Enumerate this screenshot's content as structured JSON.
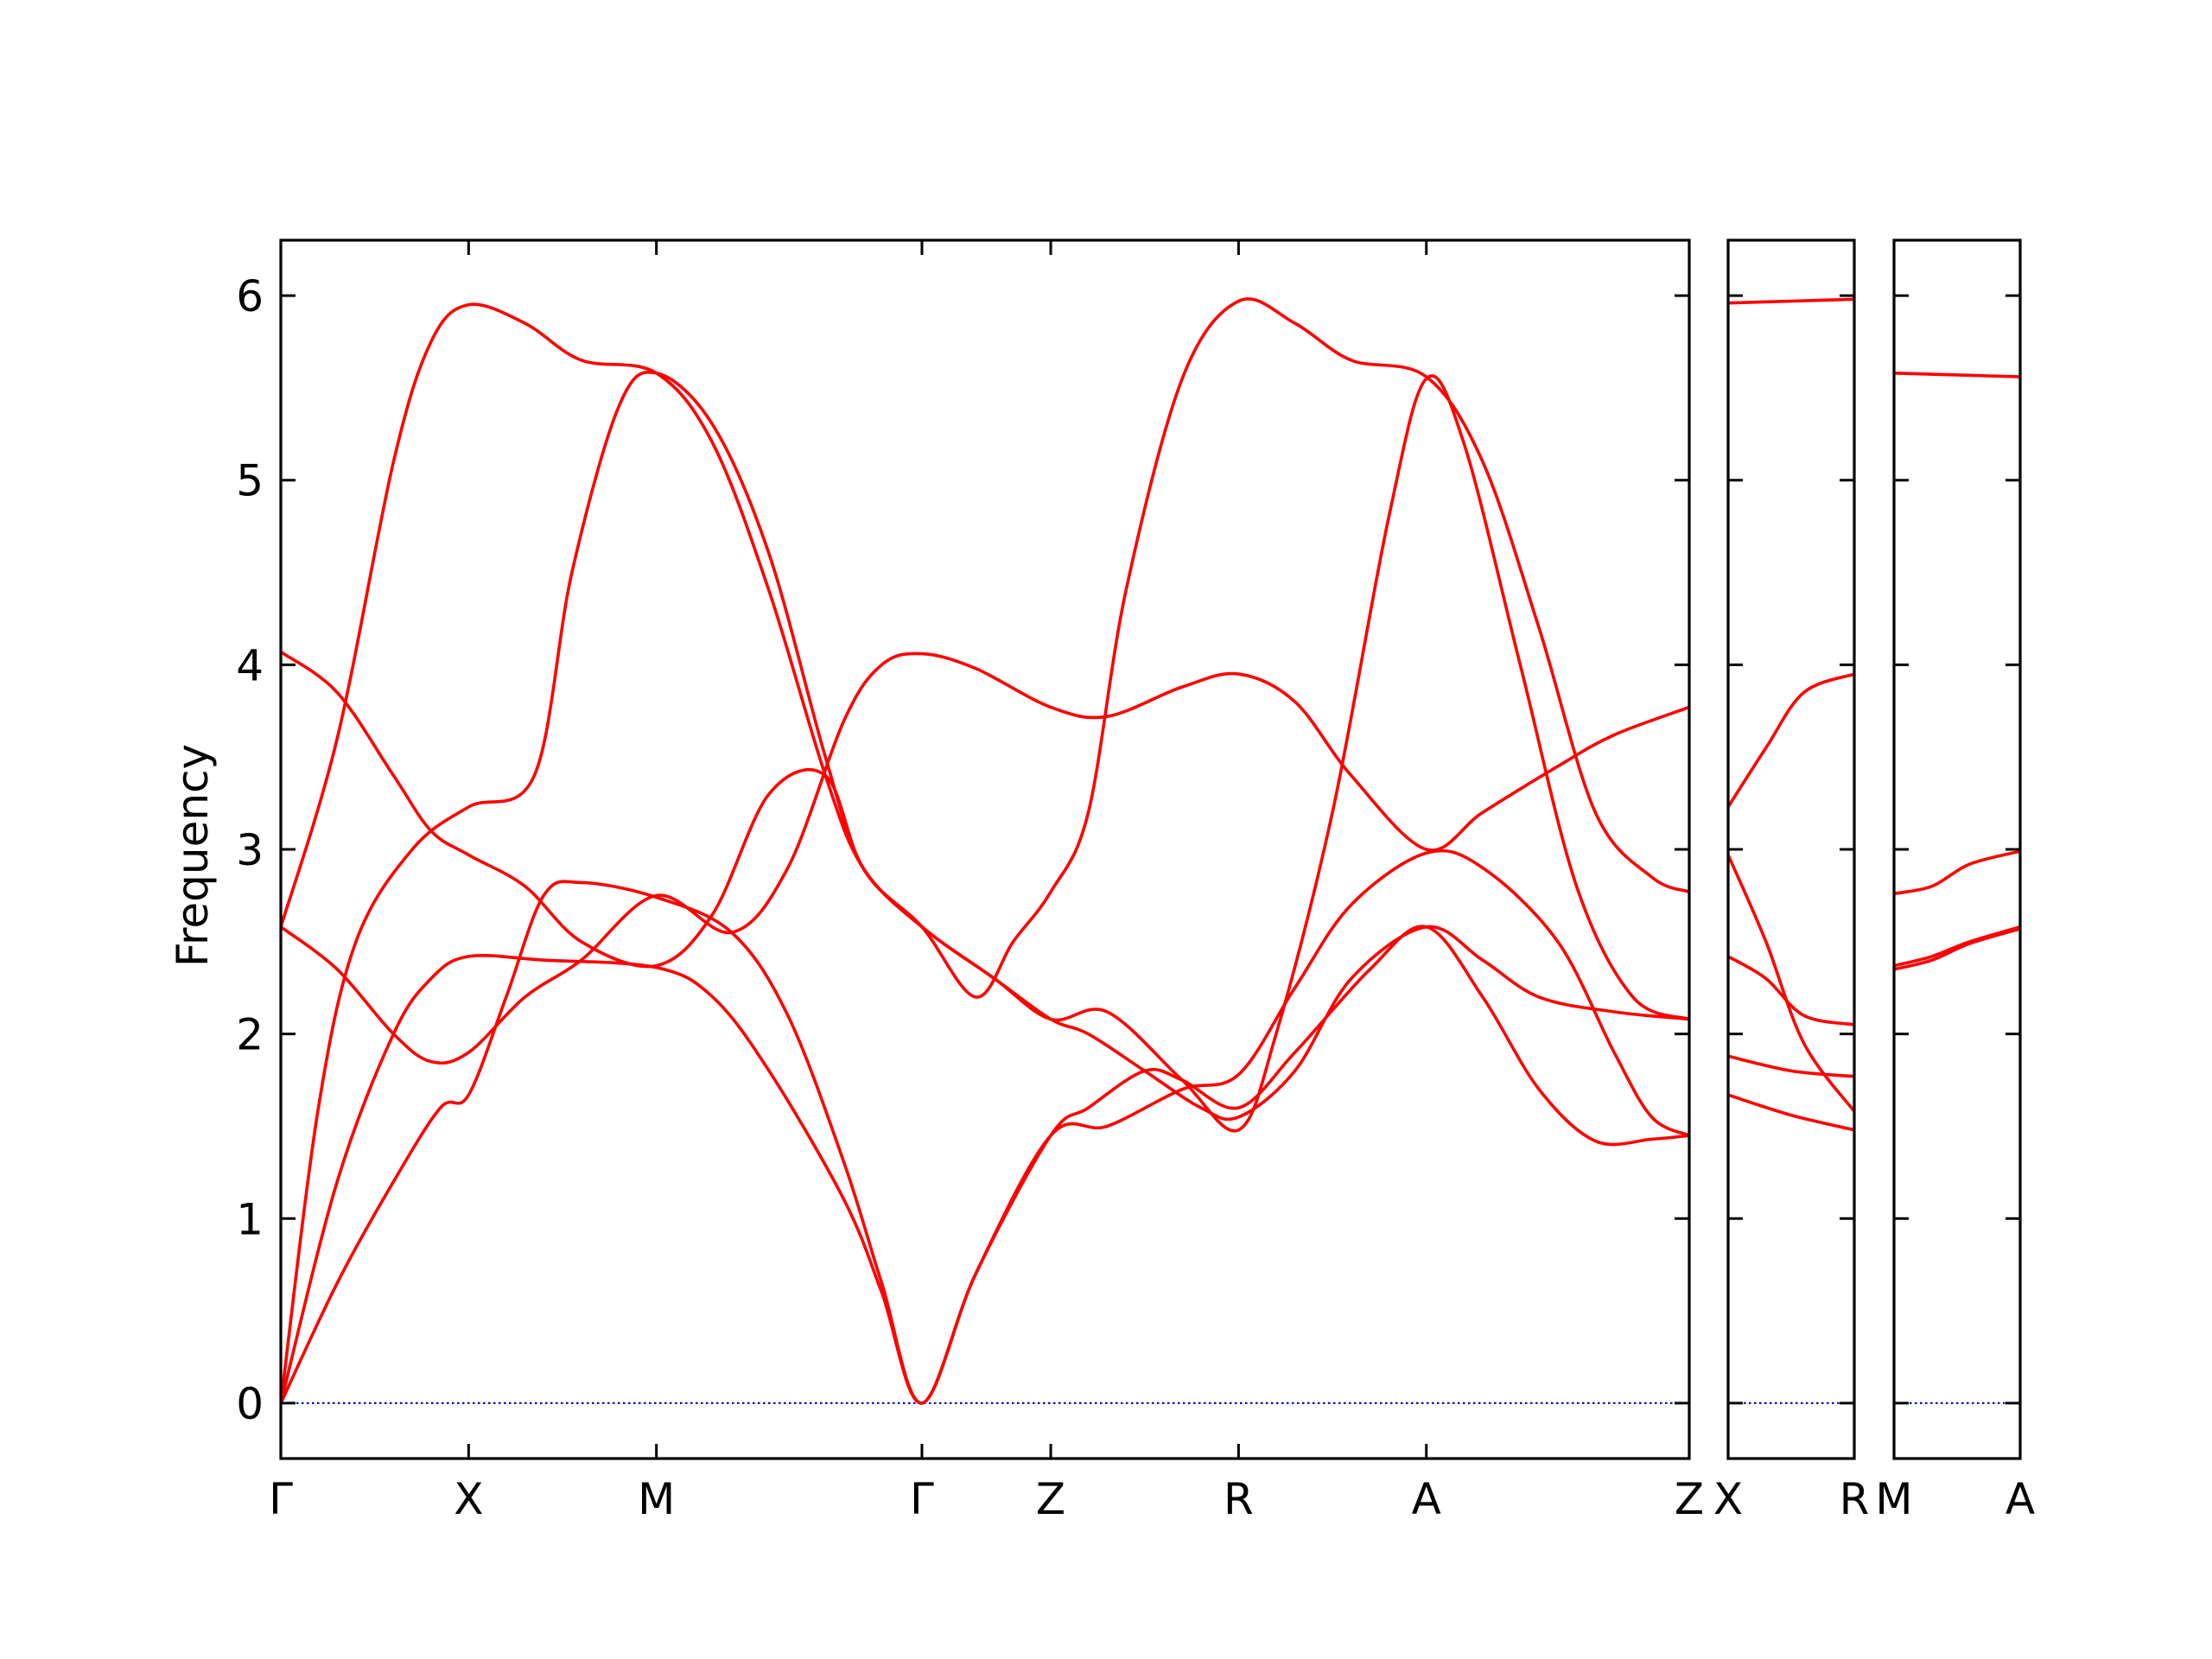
{
  "chart_data": {
    "type": "line",
    "ylabel": "Frequency",
    "ylim": [
      -0.3,
      6.3
    ],
    "yticks": [
      0,
      1,
      2,
      3,
      4,
      5,
      6
    ],
    "grid": false,
    "line_color": "#ff0000",
    "zero_line_color": "#0000cc",
    "panels": [
      {
        "xrange": [
          0,
          7.5
        ],
        "ticks": [
          {
            "label": "Γ",
            "x": 0
          },
          {
            "label": "X",
            "x": 1
          },
          {
            "label": "M",
            "x": 2
          },
          {
            "label": "Γ",
            "x": 3.414
          },
          {
            "label": "Z",
            "x": 4.1
          },
          {
            "label": "R",
            "x": 5.1
          },
          {
            "label": "A",
            "x": 6.1
          },
          {
            "label": "Z",
            "x": 7.5
          }
        ],
        "bands": [
          [
            [
              0,
              2.58
            ],
            [
              0.3,
              3.6
            ],
            [
              0.6,
              5.1
            ],
            [
              0.8,
              5.75
            ],
            [
              1,
              5.95
            ],
            [
              1.3,
              5.85
            ],
            [
              1.6,
              5.65
            ],
            [
              2,
              5.58
            ],
            [
              2.3,
              5.2
            ],
            [
              2.6,
              4.4
            ],
            [
              2.9,
              3.4
            ],
            [
              3.1,
              2.9
            ],
            [
              3.414,
              2.58
            ],
            [
              3.8,
              2.3
            ],
            [
              4.1,
              2.08
            ],
            [
              4.4,
              2.12
            ],
            [
              4.8,
              1.75
            ],
            [
              5.1,
              1.48
            ],
            [
              5.3,
              2.0
            ],
            [
              5.6,
              3.2
            ],
            [
              5.9,
              4.8
            ],
            [
              6.1,
              5.55
            ],
            [
              6.3,
              5.2
            ],
            [
              6.6,
              4.0
            ],
            [
              6.9,
              2.8
            ],
            [
              7.2,
              2.2
            ],
            [
              7.5,
              2.08
            ]
          ],
          [
            [
              0,
              2.58
            ],
            [
              0.3,
              2.35
            ],
            [
              0.6,
              2.0
            ],
            [
              0.8,
              1.85
            ],
            [
              1,
              1.9
            ],
            [
              1.3,
              2.2
            ],
            [
              1.6,
              2.4
            ],
            [
              2,
              2.75
            ],
            [
              2.4,
              2.55
            ],
            [
              2.7,
              2.9
            ],
            [
              3.0,
              3.7
            ],
            [
              3.2,
              4.0
            ],
            [
              3.414,
              4.06
            ],
            [
              3.7,
              3.98
            ],
            [
              4.1,
              3.77
            ],
            [
              4.4,
              3.72
            ],
            [
              4.8,
              3.88
            ],
            [
              5.1,
              3.95
            ],
            [
              5.4,
              3.8
            ],
            [
              5.7,
              3.4
            ],
            [
              6.1,
              3.0
            ],
            [
              6.4,
              3.2
            ],
            [
              6.8,
              3.45
            ],
            [
              7.1,
              3.62
            ],
            [
              7.5,
              3.77
            ]
          ],
          [
            [
              0,
              4.07
            ],
            [
              0.3,
              3.85
            ],
            [
              0.6,
              3.4
            ],
            [
              0.8,
              3.1
            ],
            [
              1,
              2.97
            ],
            [
              1.3,
              2.8
            ],
            [
              1.6,
              2.5
            ],
            [
              2,
              2.37
            ],
            [
              2.3,
              2.65
            ],
            [
              2.6,
              3.3
            ],
            [
              2.9,
              3.4
            ],
            [
              3.1,
              2.9
            ],
            [
              3.414,
              2.58
            ],
            [
              3.8,
              2.3
            ],
            [
              4.1,
              2.08
            ],
            [
              4.3,
              2.0
            ],
            [
              4.6,
              1.8
            ],
            [
              4.9,
              1.6
            ],
            [
              5.1,
              1.55
            ],
            [
              5.4,
              1.8
            ],
            [
              5.7,
              2.3
            ],
            [
              6.1,
              2.58
            ],
            [
              6.4,
              2.4
            ],
            [
              6.7,
              2.2
            ],
            [
              7.1,
              2.12
            ],
            [
              7.5,
              2.08
            ]
          ],
          [
            [
              0,
              0
            ],
            [
              0.3,
              0.65
            ],
            [
              0.6,
              1.2
            ],
            [
              0.85,
              1.6
            ],
            [
              1,
              1.67
            ],
            [
              1.2,
              2.2
            ],
            [
              1.4,
              2.75
            ],
            [
              1.6,
              2.82
            ],
            [
              2,
              2.74
            ],
            [
              2.4,
              2.55
            ],
            [
              2.7,
              2.1
            ],
            [
              3.0,
              1.3
            ],
            [
              3.2,
              0.65
            ],
            [
              3.414,
              0
            ],
            [
              3.7,
              0.7
            ],
            [
              4.1,
              1.45
            ],
            [
              4.4,
              1.5
            ],
            [
              4.8,
              1.7
            ],
            [
              5.1,
              1.78
            ],
            [
              5.4,
              2.25
            ],
            [
              5.7,
              2.7
            ],
            [
              6.1,
              2.98
            ],
            [
              6.4,
              2.9
            ],
            [
              6.8,
              2.5
            ],
            [
              7.1,
              1.9
            ],
            [
              7.3,
              1.55
            ],
            [
              7.5,
              1.45
            ]
          ],
          [
            [
              0,
              0
            ],
            [
              0.3,
              1.2
            ],
            [
              0.6,
              2.0
            ],
            [
              0.8,
              2.3
            ],
            [
              1,
              2.42
            ],
            [
              1.4,
              2.4
            ],
            [
              2,
              2.36
            ],
            [
              2.3,
              2.2
            ],
            [
              2.6,
              1.8
            ],
            [
              3.0,
              1.1
            ],
            [
              3.2,
              0.6
            ],
            [
              3.414,
              0
            ],
            [
              3.7,
              0.7
            ],
            [
              4.1,
              1.45
            ],
            [
              4.3,
              1.6
            ],
            [
              4.6,
              1.8
            ],
            [
              4.8,
              1.75
            ],
            [
              5.1,
              1.6
            ],
            [
              5.4,
              1.9
            ],
            [
              5.8,
              2.35
            ],
            [
              6.1,
              2.58
            ],
            [
              6.4,
              2.2
            ],
            [
              6.7,
              1.7
            ],
            [
              7.0,
              1.42
            ],
            [
              7.3,
              1.43
            ],
            [
              7.5,
              1.45
            ]
          ],
          [
            [
              0,
              0
            ],
            [
              0.2,
              1.6
            ],
            [
              0.4,
              2.5
            ],
            [
              0.7,
              3.0
            ],
            [
              1,
              3.23
            ],
            [
              1.35,
              3.4
            ],
            [
              1.55,
              4.5
            ],
            [
              1.8,
              5.4
            ],
            [
              2,
              5.58
            ],
            [
              2.3,
              5.3
            ],
            [
              2.6,
              4.6
            ],
            [
              2.9,
              3.5
            ],
            [
              3.1,
              2.9
            ],
            [
              3.414,
              2.58
            ],
            [
              3.7,
              2.2
            ],
            [
              3.9,
              2.5
            ],
            [
              4.1,
              2.77
            ],
            [
              4.3,
              3.2
            ],
            [
              4.5,
              4.4
            ],
            [
              4.8,
              5.55
            ],
            [
              5.1,
              5.97
            ],
            [
              5.4,
              5.85
            ],
            [
              5.7,
              5.65
            ],
            [
              6.1,
              5.56
            ],
            [
              6.4,
              5.1
            ],
            [
              6.7,
              4.2
            ],
            [
              7.0,
              3.2
            ],
            [
              7.3,
              2.85
            ],
            [
              7.5,
              2.77
            ]
          ]
        ]
      },
      {
        "xrange": [
          0,
          1
        ],
        "ticks": [
          {
            "label": "X",
            "x": 0
          },
          {
            "label": "R",
            "x": 1
          }
        ],
        "bands": [
          [
            [
              0,
              5.96
            ],
            [
              0.5,
              5.97
            ],
            [
              1,
              5.98
            ]
          ],
          [
            [
              0,
              3.23
            ],
            [
              0.3,
              3.55
            ],
            [
              0.6,
              3.85
            ],
            [
              1,
              3.95
            ]
          ],
          [
            [
              0,
              2.97
            ],
            [
              0.3,
              2.5
            ],
            [
              0.6,
              1.95
            ],
            [
              1,
              1.58
            ]
          ],
          [
            [
              0,
              2.42
            ],
            [
              0.3,
              2.3
            ],
            [
              0.6,
              2.1
            ],
            [
              1,
              2.05
            ]
          ],
          [
            [
              0,
              1.88
            ],
            [
              0.5,
              1.8
            ],
            [
              1,
              1.77
            ]
          ],
          [
            [
              0,
              1.67
            ],
            [
              0.5,
              1.56
            ],
            [
              1,
              1.48
            ]
          ]
        ]
      },
      {
        "xrange": [
          0,
          1
        ],
        "ticks": [
          {
            "label": "M",
            "x": 0
          },
          {
            "label": "A",
            "x": 1
          }
        ],
        "bands": [
          [
            [
              0,
              5.58
            ],
            [
              0.5,
              5.57
            ],
            [
              1,
              5.56
            ]
          ],
          [
            [
              0,
              2.76
            ],
            [
              0.3,
              2.8
            ],
            [
              0.6,
              2.92
            ],
            [
              1,
              2.99
            ]
          ],
          [
            [
              0,
              2.37
            ],
            [
              0.3,
              2.42
            ],
            [
              0.6,
              2.5
            ],
            [
              1,
              2.58
            ]
          ],
          [
            [
              0,
              2.35
            ],
            [
              0.3,
              2.4
            ],
            [
              0.6,
              2.49
            ],
            [
              1,
              2.57
            ]
          ]
        ]
      }
    ]
  }
}
